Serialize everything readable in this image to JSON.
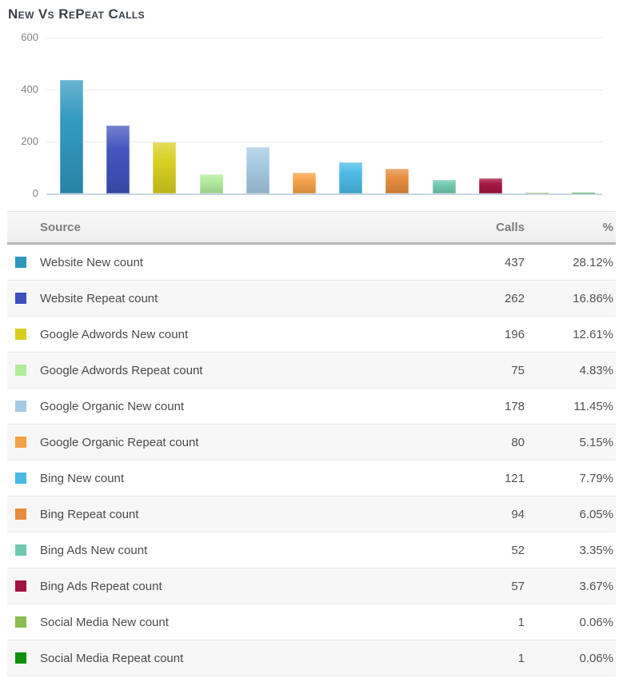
{
  "page": {
    "title": "New Vs RePeat Calls"
  },
  "chart_data": {
    "type": "bar",
    "title": "New Vs RePeat Calls",
    "xlabel": "",
    "ylabel": "",
    "ylim": [
      0,
      600
    ],
    "yticks": [
      600,
      400,
      200,
      0
    ],
    "grid": true,
    "legend_position": "table-below",
    "categories": [
      "Website New count",
      "Website Repeat count",
      "Google Adwords New count",
      "Google Adwords Repeat count",
      "Google Organic New count",
      "Google Organic Repeat count",
      "Bing New count",
      "Bing Repeat count",
      "Bing Ads New count",
      "Bing Ads Repeat count",
      "Social Media New count",
      "Social Media Repeat count"
    ],
    "values": [
      437,
      262,
      196,
      75,
      178,
      80,
      121,
      94,
      52,
      57,
      1,
      1
    ],
    "colors": [
      "#2e97be",
      "#3e50bd",
      "#d8cf1d",
      "#b2eb9c",
      "#a5c9e2",
      "#f5a147",
      "#49b9e4",
      "#e68c3c",
      "#70c8ae",
      "#a21140",
      "#8cbd52",
      "#11900f"
    ]
  },
  "table": {
    "headers": {
      "source": "Source",
      "calls": "Calls",
      "percent": "%"
    },
    "rows": [
      {
        "source": "Website New count",
        "calls": "437",
        "percent": "28.12%",
        "color": "#2e97be"
      },
      {
        "source": "Website Repeat count",
        "calls": "262",
        "percent": "16.86%",
        "color": "#3e50bd"
      },
      {
        "source": "Google Adwords New count",
        "calls": "196",
        "percent": "12.61%",
        "color": "#d8cf1d"
      },
      {
        "source": "Google Adwords Repeat count",
        "calls": "75",
        "percent": "4.83%",
        "color": "#b2eb9c"
      },
      {
        "source": "Google Organic New count",
        "calls": "178",
        "percent": "11.45%",
        "color": "#a5c9e2"
      },
      {
        "source": "Google Organic Repeat count",
        "calls": "80",
        "percent": "5.15%",
        "color": "#f5a147"
      },
      {
        "source": "Bing New count",
        "calls": "121",
        "percent": "7.79%",
        "color": "#49b9e4"
      },
      {
        "source": "Bing Repeat count",
        "calls": "94",
        "percent": "6.05%",
        "color": "#e68c3c"
      },
      {
        "source": "Bing Ads New count",
        "calls": "52",
        "percent": "3.35%",
        "color": "#70c8ae"
      },
      {
        "source": "Bing Ads Repeat count",
        "calls": "57",
        "percent": "3.67%",
        "color": "#a21140"
      },
      {
        "source": "Social Media New count",
        "calls": "1",
        "percent": "0.06%",
        "color": "#8cbd52"
      },
      {
        "source": "Social Media Repeat count",
        "calls": "1",
        "percent": "0.06%",
        "color": "#11900f"
      }
    ]
  }
}
